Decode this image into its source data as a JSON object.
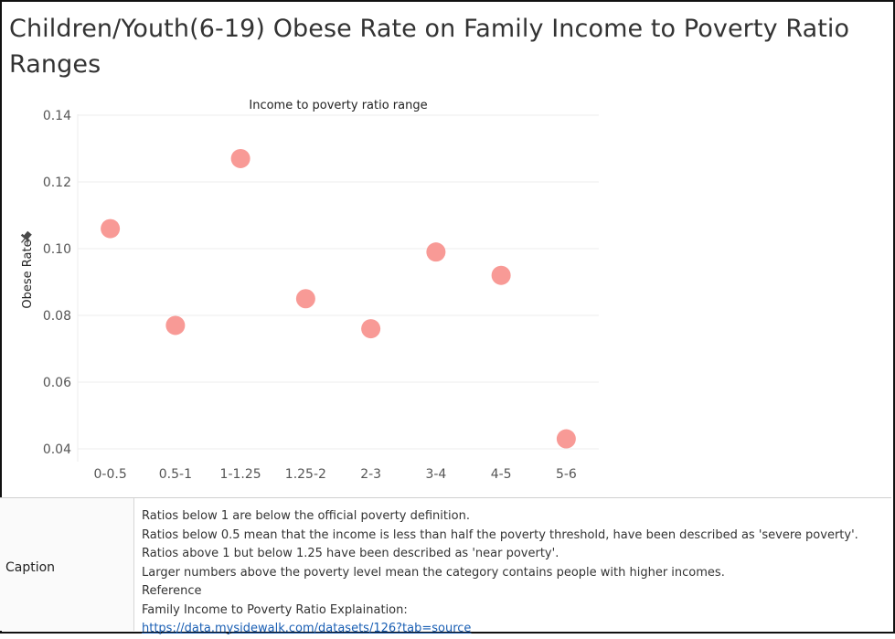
{
  "page": {
    "title": "Children/Youth(6-19) Obese Rate on Family Income to Poverty Ratio Ranges"
  },
  "chart_data": {
    "type": "scatter",
    "title": "Income to poverty ratio range",
    "xlabel": "Income to poverty ratio range",
    "ylabel": "Obese Rate",
    "categories": [
      "0-0.5",
      "0.5-1",
      "1-1.25",
      "1.25-2",
      "2-3",
      "3-4",
      "4-5",
      "5-6"
    ],
    "values": [
      0.106,
      0.077,
      0.127,
      0.085,
      0.076,
      0.099,
      0.092,
      0.043
    ],
    "ylim": [
      0.04,
      0.14
    ],
    "yticks": [
      "0.04",
      "0.06",
      "0.08",
      "0.10",
      "0.12",
      "0.14"
    ],
    "ytick_values": [
      0.04,
      0.06,
      0.08,
      0.1,
      0.12,
      0.14
    ],
    "grid": true,
    "marker_color": "#f89a96"
  },
  "caption": {
    "label": "Caption",
    "lines": [
      "Ratios below 1  are below the official poverty definition.",
      "Ratios below 0.5  mean that the income is less than half the poverty threshold, have been described as 'severe poverty'.",
      "Ratios above 1  but below 1.25  have been described as 'near poverty'.",
      "Larger numbers above the poverty level mean the category contains people with higher incomes.",
      "Reference",
      "Family Income to Poverty Ratio Explaination:"
    ],
    "link": "https://data.mysidewalk.com/datasets/126?tab=source"
  }
}
